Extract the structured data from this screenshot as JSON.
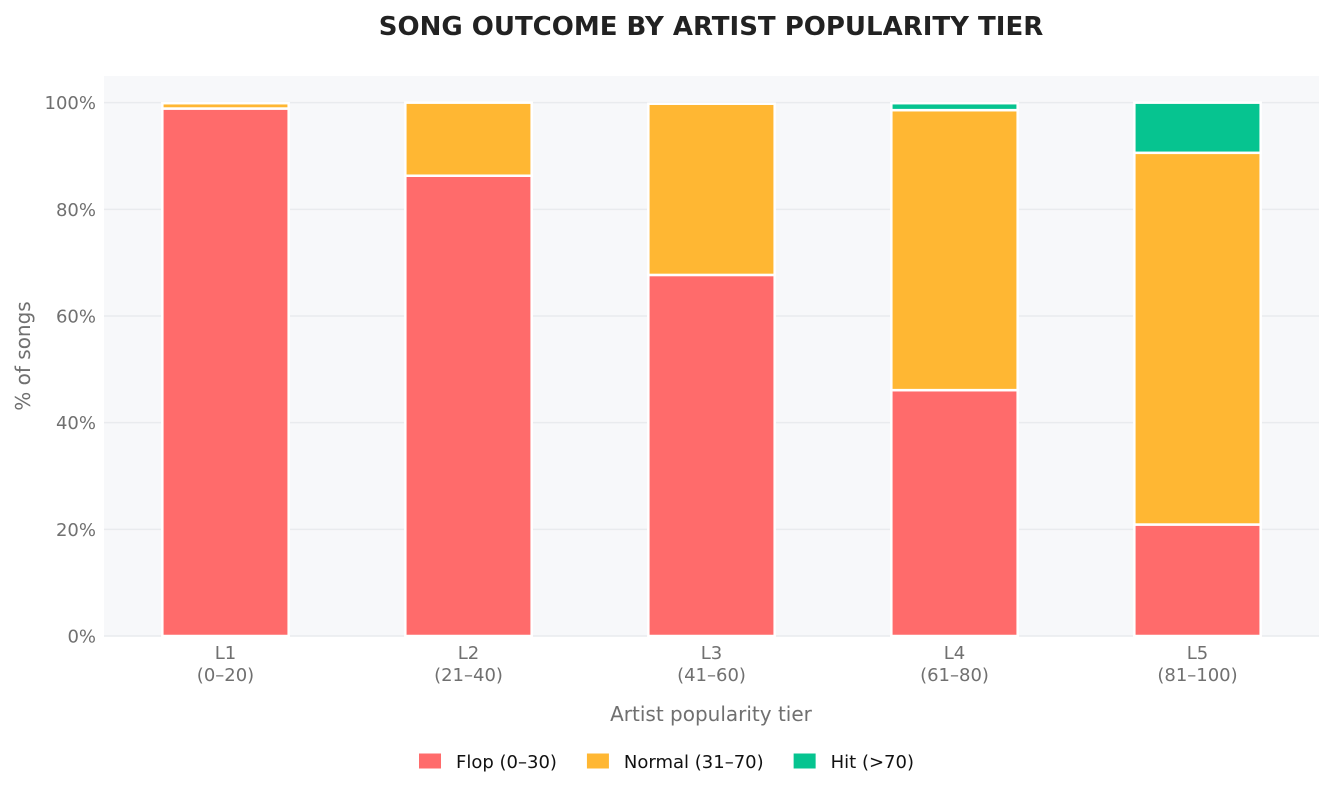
{
  "chart_data": {
    "type": "bar",
    "stacked": true,
    "title": "SONG OUTCOME BY ARTIST POPULARITY TIER",
    "xlabel": "Artist popularity tier",
    "ylabel": "% of songs",
    "categories": [
      "L1",
      "L2",
      "L3",
      "L4",
      "L5"
    ],
    "category_sublabels": [
      "(0–20)",
      "(21–40)",
      "(41–60)",
      "(61–80)",
      "(81–100)"
    ],
    "ylim": [
      0,
      105
    ],
    "yticks": [
      0,
      20,
      40,
      60,
      80,
      100
    ],
    "ytick_labels": [
      "0%",
      "20%",
      "40%",
      "60%",
      "80%",
      "100%"
    ],
    "grid": "y",
    "legend_position": "bottom",
    "series": [
      {
        "name": "Flop (0–30)",
        "color": "#ff6b6b",
        "values": [
          98.9,
          86.3,
          67.7,
          46.1,
          20.9
        ]
      },
      {
        "name": "Normal (31–70)",
        "color": "#ffb733",
        "values": [
          1.0,
          13.7,
          32.1,
          52.5,
          69.7
        ]
      },
      {
        "name": "Hit (>70)",
        "color": "#06c490",
        "values": [
          0.0,
          0.0,
          0.0,
          1.3,
          9.4
        ]
      }
    ],
    "colors": {
      "plot_background": "#f7f8fa",
      "gridline": "#e9ebee",
      "title": "#222222",
      "axis_text": "#707070"
    }
  }
}
